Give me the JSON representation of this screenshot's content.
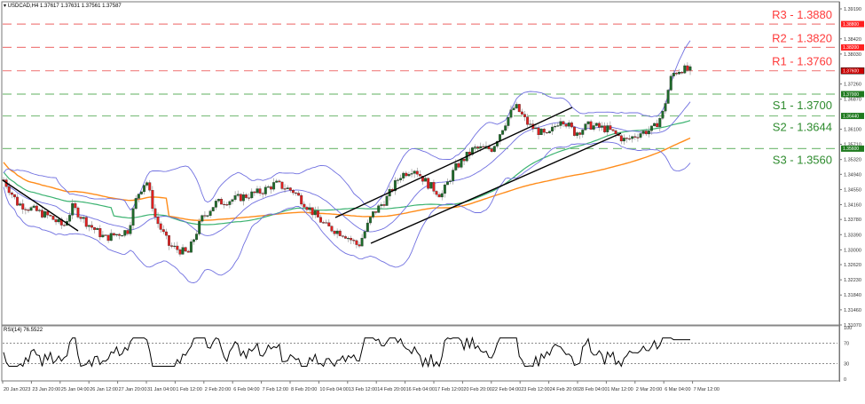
{
  "header": {
    "symbol_line": "▾ USDCAD,H4  1.37617 1.37631 1.37561 1.37587"
  },
  "rsi_panel": {
    "title": "RSI(14) 76.5522",
    "levels": [
      "100",
      "70",
      "30",
      "0"
    ]
  },
  "colors": {
    "resistance": "#ff3b3b",
    "support": "#2e8b2e",
    "support_line": "#7fbf7f",
    "resistance_line": "#f08080",
    "bull_candle": "#1e6b2a",
    "bear_candle": "#e02020",
    "bollinger": "#7070e0",
    "ma_green": "#3cb371",
    "ma_orange": "#ff8c1a",
    "trendline": "#000000",
    "rsi_line": "#000000"
  },
  "chart_data": {
    "type": "candlestick",
    "title": "USDCAD,H4",
    "ohlc_header": {
      "open": 1.37617,
      "high": 1.37631,
      "low": 1.37561,
      "close": 1.37587
    },
    "x_ticks": [
      "20 Jan 2023",
      "23 Jan 20:00",
      "25 Jan 04:00",
      "26 Jan 12:00",
      "27 Jan 20:00",
      "31 Jan 04:00",
      "1 Feb 12:00",
      "2 Feb 20:00",
      "6 Feb 04:00",
      "7 Feb 12:00",
      "8 Feb 20:00",
      "10 Feb 04:00",
      "13 Feb 12:00",
      "14 Feb 20:00",
      "16 Feb 04:00",
      "17 Feb 12:00",
      "20 Feb 20:00",
      "22 Feb 04:00",
      "23 Feb 12:00",
      "24 Feb 20:00",
      "28 Feb 04:00",
      "1 Mar 12:00",
      "2 Mar 20:00",
      "6 Mar 04:00",
      "7 Mar 12:00"
    ],
    "y_ticks": [
      "1.39190",
      "1.38420",
      "1.38030",
      "1.37260",
      "1.36870",
      "1.36100",
      "1.35710",
      "1.35320",
      "1.34940",
      "1.34550",
      "1.34160",
      "1.33780",
      "1.33390",
      "1.33000",
      "1.32620",
      "1.32230",
      "1.31840",
      "1.31460",
      "1.31070"
    ],
    "ylim": [
      1.3107,
      1.3919
    ],
    "levels": [
      {
        "name": "R3",
        "label": "R3 - 1.3880",
        "value": 1.388,
        "tag": "1.38800",
        "type": "resistance"
      },
      {
        "name": "R2",
        "label": "R2 - 1.3820",
        "value": 1.382,
        "tag": "1.38200",
        "type": "resistance"
      },
      {
        "name": "R1",
        "label": "R1 - 1.3760",
        "value": 1.376,
        "tag": "1.37600",
        "type": "resistance"
      },
      {
        "name": "S1",
        "label": "S1 - 1.3700",
        "value": 1.37,
        "tag": "1.37000",
        "type": "support"
      },
      {
        "name": "S2",
        "label": "S2 - 1.3644",
        "value": 1.3644,
        "tag": "1.36440",
        "type": "support"
      },
      {
        "name": "S3",
        "label": "S3 - 1.3560",
        "value": 1.356,
        "tag": "1.35600",
        "type": "support"
      }
    ],
    "indicators": [
      "Bollinger Bands (20)",
      "Moving Average (green)",
      "Moving Average (orange)",
      "RSI(14)"
    ],
    "rsi": {
      "value": 76.5522,
      "levels": [
        70,
        30
      ],
      "range": [
        0,
        100
      ]
    },
    "trendlines": [
      "Descending trendline 20-23 Jan",
      "Ascending channel 10 Feb - 1 Mar"
    ]
  }
}
